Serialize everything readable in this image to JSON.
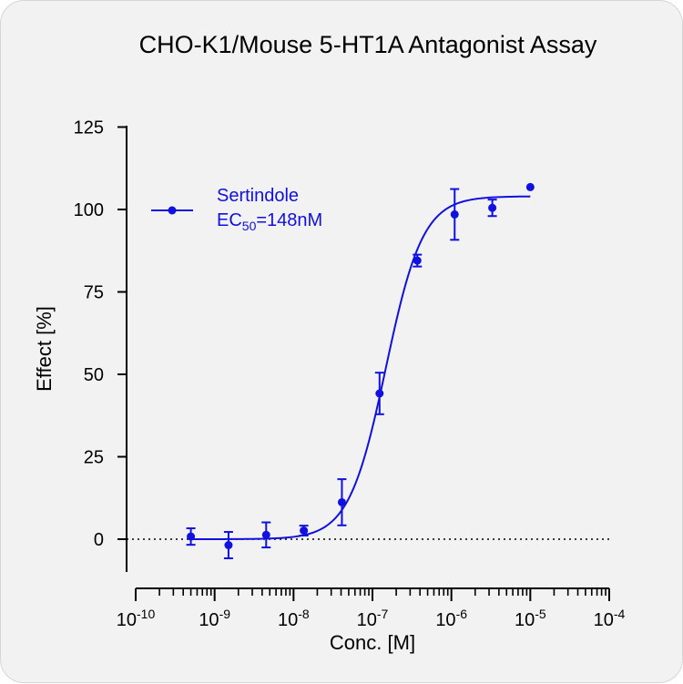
{
  "chart_data": {
    "type": "scatter",
    "title": "CHO-K1/Mouse 5-HT1A Antagonist Assay",
    "xlabel": "Conc. [M]",
    "ylabel": "Effect  [%]",
    "x_scale": "log",
    "xlim": [
      1e-10,
      0.0001
    ],
    "ylim": [
      -10,
      125
    ],
    "x_ticks": [
      {
        "exp": "-10",
        "value": 1e-10
      },
      {
        "exp": "-9",
        "value": 1e-09
      },
      {
        "exp": "-8",
        "value": 1e-08
      },
      {
        "exp": "-7",
        "value": 1e-07
      },
      {
        "exp": "-6",
        "value": 1e-06
      },
      {
        "exp": "-5",
        "value": 1e-05
      },
      {
        "exp": "-4",
        "value": 0.0001
      }
    ],
    "y_ticks": [
      0,
      25,
      50,
      75,
      100,
      125
    ],
    "reference_line": {
      "y": 0,
      "style": "dotted"
    },
    "color": "#1010e0",
    "legend": {
      "placement": "top-left",
      "name": "Sertindole",
      "ec50_prefix": "EC",
      "ec50_sub": "50",
      "ec50_value": "=148nM"
    },
    "series": [
      {
        "name": "Sertindole",
        "points": [
          {
            "x": 5e-10,
            "y": 0.8,
            "err": 2.5
          },
          {
            "x": 1.5e-09,
            "y": -1.8,
            "err": 4.0
          },
          {
            "x": 4.5e-09,
            "y": 1.3,
            "err": 3.8
          },
          {
            "x": 1.35e-08,
            "y": 2.6,
            "err": 1.5
          },
          {
            "x": 4.1e-08,
            "y": 11.2,
            "err": 7.0
          },
          {
            "x": 1.23e-07,
            "y": 44.2,
            "err": 6.3
          },
          {
            "x": 3.7e-07,
            "y": 84.5,
            "err": 1.8
          },
          {
            "x": 1.1e-06,
            "y": 98.5,
            "err": 7.7
          },
          {
            "x": 3.3e-06,
            "y": 100.5,
            "err": 2.5
          },
          {
            "x": 1e-05,
            "y": 106.8,
            "err": 0
          }
        ],
        "fit": {
          "bottom": 0,
          "top": 104,
          "ec50": 1.48e-07,
          "hill": 1.85
        }
      }
    ]
  }
}
